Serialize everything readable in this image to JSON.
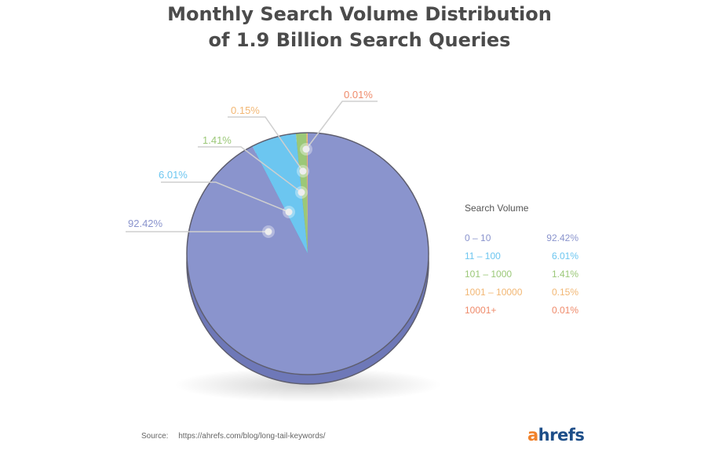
{
  "title_line1": "Monthly Search Volume Distribution",
  "title_line2": "of 1.9 Billion Search Queries",
  "chart_data": {
    "type": "pie",
    "legend_title": "Search Volume",
    "legend_position": "right",
    "slices": [
      {
        "label": "0 – 10",
        "value": 92.42,
        "value_label": "92.42%",
        "color": "#8a94cd",
        "side": "#6e78b8"
      },
      {
        "label": "11 – 100",
        "value": 6.01,
        "value_label": "6.01%",
        "color": "#6cc6f0",
        "side": "#4eaedb"
      },
      {
        "label": "101 – 1000",
        "value": 1.41,
        "value_label": "1.41%",
        "color": "#9bc878",
        "side": "#7fb25c"
      },
      {
        "label": "1001 – 10000",
        "value": 0.15,
        "value_label": "0.15%",
        "color": "#f2b774",
        "side": "#dda05a"
      },
      {
        "label": "10001+",
        "value": 0.01,
        "value_label": "0.01%",
        "color": "#ef8a6a",
        "side": "#d87052"
      }
    ]
  },
  "source_label": "Source:",
  "source_url": "https://ahrefs.com/blog/long-tail-keywords/",
  "logo_a": "a",
  "logo_rest": "hrefs"
}
